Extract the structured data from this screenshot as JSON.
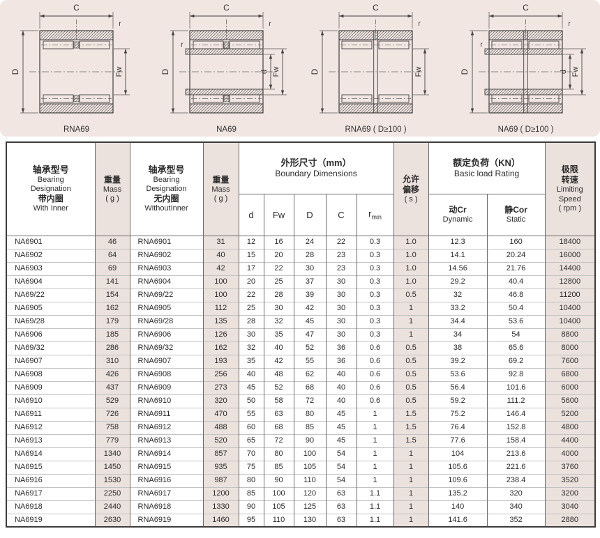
{
  "colors": {
    "band_bg": "#f2e6e2",
    "shade_bg": "#ebe1dd",
    "table_border": "#3c3c3c"
  },
  "diagrams": {
    "dim_labels": {
      "c": "C",
      "r": "r",
      "outer": "D",
      "fw": "Fw",
      "bore": "d"
    },
    "items": [
      {
        "caption": "RNA69",
        "has_inner": false,
        "double_row": false,
        "name": "diagram-rna69"
      },
      {
        "caption": "NA69",
        "has_inner": true,
        "double_row": false,
        "name": "diagram-na69"
      },
      {
        "caption": "RNA69 ( D≥100 )",
        "has_inner": false,
        "double_row": true,
        "name": "diagram-rna69-d100"
      },
      {
        "caption": "NA69 ( D≥100 )",
        "has_inner": true,
        "double_row": true,
        "name": "diagram-na69-d100"
      }
    ]
  },
  "table": {
    "header": {
      "col_with_inner": {
        "zh": "轴承型号",
        "en1": "Bearing",
        "en2": "Designation",
        "zh2": "带内圈",
        "en3": "With Inner"
      },
      "col_mass1": {
        "zh": "重量",
        "en": "Mass",
        "unit": "( g )"
      },
      "col_without_inner": {
        "zh": "轴承型号",
        "en1": "Bearing",
        "en2": "Designation",
        "zh2": "无内圈",
        "en3": "WithoutInner"
      },
      "col_mass2": {
        "zh": "重量",
        "en": "Mass",
        "unit": "( g )"
      },
      "group_dimensions": {
        "zh": "外形尺寸（mm）",
        "en": "Boundary Dimensions"
      },
      "sub_d": "d",
      "sub_fw": "Fw",
      "sub_D": "D",
      "sub_C": "C",
      "sub_rmin": {
        "base": "r",
        "sub": "min"
      },
      "col_offset": {
        "zh1": "允许",
        "zh2": "偏移",
        "unit": "( s )"
      },
      "group_load": {
        "zh": "额定负荷（KN）",
        "en": "Basic load Rating"
      },
      "sub_cr": {
        "zh": "动Cr",
        "en": "Dynamic"
      },
      "sub_cor": {
        "zh": "静Cor",
        "en": "Static"
      },
      "col_speed": {
        "zh1": "极限",
        "zh2": "转速",
        "en1": "Limiting",
        "en2": "Speed",
        "unit": "( rpm )"
      }
    },
    "column_keys": [
      "na-designation",
      "mass-with",
      "rna-designation",
      "mass-without",
      "d",
      "fw",
      "d-outer",
      "c",
      "rmin",
      "s",
      "cr-dynamic",
      "cor-static",
      "limiting-speed"
    ],
    "shaded_columns": [
      1,
      3,
      9,
      12
    ],
    "rows": [
      [
        "NA6901",
        "46",
        "RNA6901",
        "31",
        "12",
        "16",
        "24",
        "22",
        "0.3",
        "1.0",
        "12.3",
        "160",
        "18400"
      ],
      [
        "NA6902",
        "64",
        "RNA6902",
        "40",
        "15",
        "20",
        "28",
        "23",
        "0.3",
        "1.0",
        "14.1",
        "20.24",
        "16000"
      ],
      [
        "NA6903",
        "69",
        "RNA6903",
        "42",
        "17",
        "22",
        "30",
        "23",
        "0.3",
        "1.0",
        "14.56",
        "21.76",
        "14400"
      ],
      [
        "NA6904",
        "141",
        "RNA6904",
        "100",
        "20",
        "25",
        "37",
        "30",
        "0.3",
        "1.0",
        "29.2",
        "40.4",
        "12800"
      ],
      [
        "NA69/22",
        "154",
        "RNA69/22",
        "100",
        "22",
        "28",
        "39",
        "30",
        "0.3",
        "0.5",
        "32",
        "46.8",
        "11200"
      ],
      [
        "NA6905",
        "162",
        "RNA6905",
        "112",
        "25",
        "30",
        "42",
        "30",
        "0.3",
        "1",
        "33.2",
        "50.4",
        "10400"
      ],
      [
        "NA69/28",
        "179",
        "RNA69/28",
        "135",
        "28",
        "32",
        "45",
        "30",
        "0.3",
        "1",
        "34.4",
        "53.6",
        "10400"
      ],
      [
        "NA6906",
        "185",
        "RNA6906",
        "126",
        "30",
        "35",
        "47",
        "30",
        "0.3",
        "1",
        "34",
        "54",
        "8800"
      ],
      [
        "NA69/32",
        "286",
        "RNA69/32",
        "162",
        "32",
        "40",
        "52",
        "36",
        "0.6",
        "0.5",
        "38",
        "65.6",
        "8000"
      ],
      [
        "NA6907",
        "310",
        "RNA6907",
        "193",
        "35",
        "42",
        "55",
        "36",
        "0.6",
        "0.5",
        "39.2",
        "69.2",
        "7600"
      ],
      [
        "NA6908",
        "426",
        "RNA6908",
        "256",
        "40",
        "48",
        "62",
        "40",
        "0.6",
        "0.5",
        "53.6",
        "92.8",
        "6800"
      ],
      [
        "NA6909",
        "437",
        "RNA6909",
        "273",
        "45",
        "52",
        "68",
        "40",
        "0.6",
        "0.5",
        "56.4",
        "101.6",
        "6000"
      ],
      [
        "NA6910",
        "529",
        "RNA6910",
        "320",
        "50",
        "58",
        "72",
        "40",
        "0.6",
        "0.5",
        "59.2",
        "111.2",
        "5600"
      ],
      [
        "NA6911",
        "726",
        "RNA6911",
        "470",
        "55",
        "63",
        "80",
        "45",
        "1",
        "1.5",
        "75.2",
        "146.4",
        "5200"
      ],
      [
        "NA6912",
        "758",
        "RNA6912",
        "488",
        "60",
        "68",
        "85",
        "45",
        "1",
        "1.5",
        "76.4",
        "152.8",
        "4800"
      ],
      [
        "NA6913",
        "779",
        "RNA6913",
        "520",
        "65",
        "72",
        "90",
        "45",
        "1",
        "1.5",
        "77.6",
        "158.4",
        "4400"
      ],
      [
        "NA6914",
        "1340",
        "RNA6914",
        "857",
        "70",
        "80",
        "100",
        "54",
        "1",
        "1",
        "104",
        "213.6",
        "4000"
      ],
      [
        "NA6915",
        "1450",
        "RNA6915",
        "935",
        "75",
        "85",
        "105",
        "54",
        "1",
        "1",
        "105.6",
        "221.6",
        "3760"
      ],
      [
        "NA6916",
        "1530",
        "RNA6916",
        "987",
        "80",
        "90",
        "110",
        "54",
        "1",
        "1",
        "109.6",
        "238.4",
        "3520"
      ],
      [
        "NA6917",
        "2250",
        "RNA6917",
        "1200",
        "85",
        "100",
        "120",
        "63",
        "1.1",
        "1",
        "135.2",
        "320",
        "3200"
      ],
      [
        "NA6918",
        "2440",
        "RNA6918",
        "1330",
        "90",
        "105",
        "125",
        "63",
        "1.1",
        "1",
        "140",
        "340",
        "3040"
      ],
      [
        "NA6919",
        "2630",
        "RNA6919",
        "1460",
        "95",
        "110",
        "130",
        "63",
        "1.1",
        "1",
        "141.6",
        "352",
        "2880"
      ]
    ]
  }
}
